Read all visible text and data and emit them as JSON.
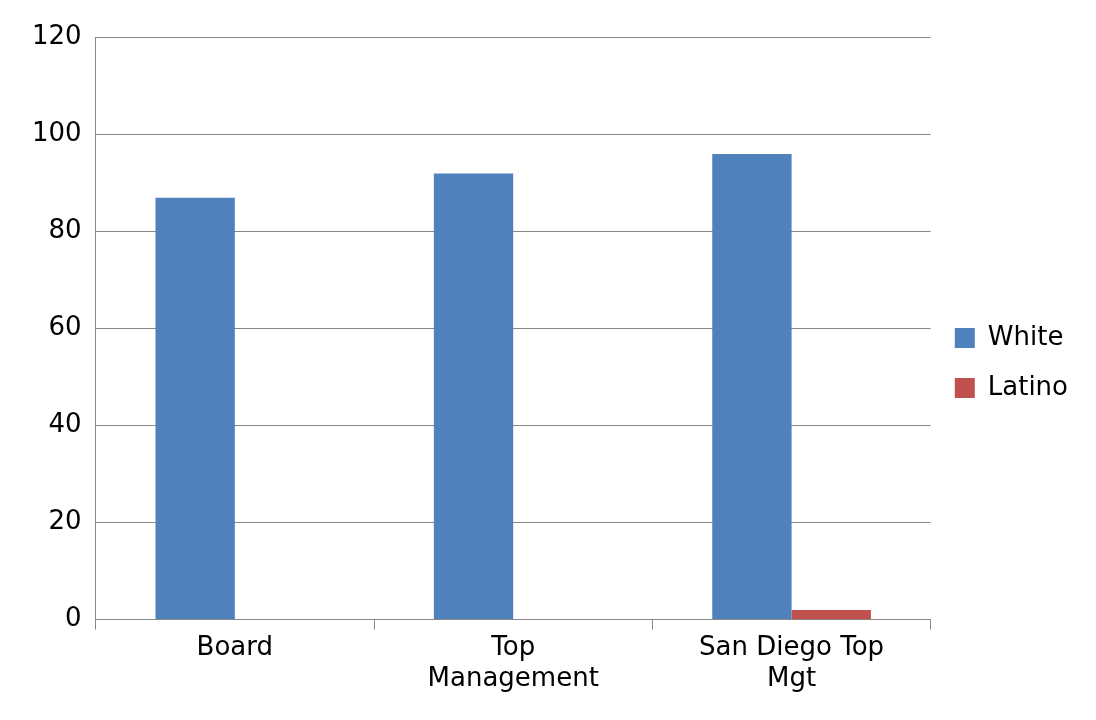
{
  "chart_data": {
    "type": "bar",
    "categories": [
      "Board",
      "Top Management",
      "San Diego Top Mgt"
    ],
    "series": [
      {
        "name": "White",
        "color": "#4f81bd",
        "values": [
          87,
          92,
          96
        ]
      },
      {
        "name": "Latino",
        "color": "#c0504d",
        "values": [
          0,
          0,
          2
        ]
      }
    ],
    "ylim": [
      0,
      120
    ],
    "yticks": [
      0,
      20,
      40,
      60,
      80,
      100,
      120
    ],
    "grid": "y",
    "legend": "right"
  }
}
